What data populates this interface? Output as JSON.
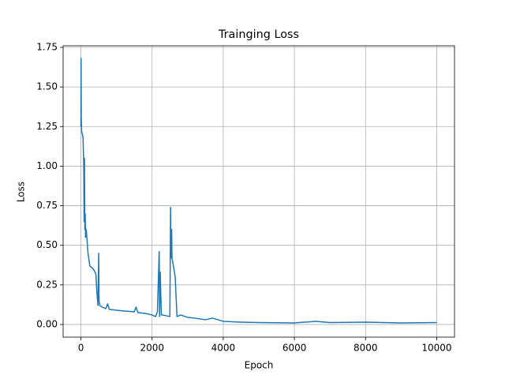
{
  "chart_data": {
    "type": "line",
    "title": "Trainging Loss",
    "x_label": "Epoch",
    "y_label": "Loss",
    "x": [
      0,
      5,
      10,
      20,
      40,
      60,
      80,
      90,
      100,
      110,
      120,
      130,
      150,
      200,
      250,
      350,
      420,
      450,
      480,
      500,
      510,
      530,
      600,
      700,
      750,
      800,
      1000,
      1200,
      1500,
      1550,
      1600,
      1800,
      2000,
      2100,
      2150,
      2200,
      2210,
      2230,
      2260,
      2300,
      2500,
      2520,
      2530,
      2550,
      2560,
      2600,
      2650,
      2700,
      2800,
      3000,
      3200,
      3500,
      3700,
      4000,
      4500,
      5000,
      6000,
      6600,
      7000,
      8000,
      9000,
      10000
    ],
    "series": [
      {
        "name": "Loss",
        "color": "#1f77b4",
        "values": [
          1.25,
          1.68,
          1.3,
          1.22,
          1.2,
          1.18,
          1.0,
          0.65,
          1.05,
          0.6,
          0.7,
          0.55,
          0.6,
          0.45,
          0.37,
          0.35,
          0.32,
          0.2,
          0.12,
          0.45,
          0.15,
          0.12,
          0.11,
          0.1,
          0.13,
          0.095,
          0.09,
          0.085,
          0.08,
          0.11,
          0.075,
          0.07,
          0.06,
          0.05,
          0.08,
          0.46,
          0.05,
          0.33,
          0.06,
          0.06,
          0.05,
          0.74,
          0.42,
          0.6,
          0.42,
          0.37,
          0.3,
          0.05,
          0.06,
          0.045,
          0.04,
          0.03,
          0.04,
          0.02,
          0.015,
          0.012,
          0.01,
          0.02,
          0.012,
          0.015,
          0.01,
          0.012
        ]
      }
    ],
    "xlim": [
      -500,
      10500
    ],
    "ylim": [
      -0.08,
      1.76
    ],
    "xticks": [
      0,
      2000,
      4000,
      6000,
      8000,
      10000
    ],
    "yticks": [
      {
        "value": 0,
        "label": "0.00"
      },
      {
        "value": 0.25,
        "label": "0.25"
      },
      {
        "value": 0.5,
        "label": "0.50"
      },
      {
        "value": 0.75,
        "label": "0.75"
      },
      {
        "value": 1,
        "label": "1.00"
      },
      {
        "value": 1.25,
        "label": "1.25"
      },
      {
        "value": 1.5,
        "label": "1.50"
      },
      {
        "value": 1.75,
        "label": "1.75"
      }
    ],
    "grid": true
  }
}
